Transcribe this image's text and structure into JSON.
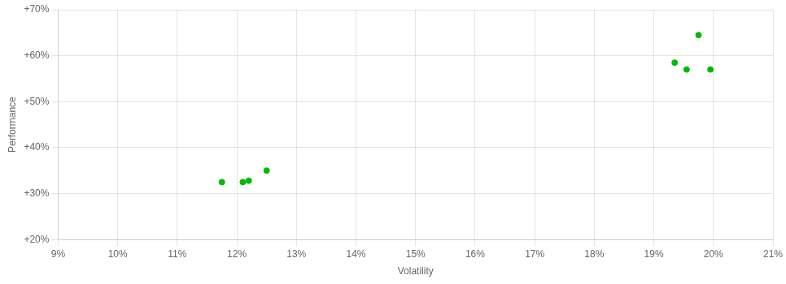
{
  "chart_data": {
    "type": "scatter",
    "x": [
      11.75,
      12.1,
      12.2,
      12.5,
      19.35,
      19.55,
      19.75,
      19.95
    ],
    "values": [
      32.5,
      32.5,
      32.8,
      35.0,
      58.5,
      57.0,
      64.5,
      57.0
    ],
    "color": "#00bb00",
    "xlabel": "Volatility",
    "ylabel": "Performance",
    "xlim": [
      9,
      21
    ],
    "ylim": [
      20,
      70
    ],
    "xticks": [
      {
        "value": 9,
        "label": "9%"
      },
      {
        "value": 10,
        "label": "10%"
      },
      {
        "value": 11,
        "label": "11%"
      },
      {
        "value": 12,
        "label": "12%"
      },
      {
        "value": 13,
        "label": "13%"
      },
      {
        "value": 14,
        "label": "14%"
      },
      {
        "value": 15,
        "label": "15%"
      },
      {
        "value": 16,
        "label": "16%"
      },
      {
        "value": 17,
        "label": "17%"
      },
      {
        "value": 18,
        "label": "18%"
      },
      {
        "value": 19,
        "label": "19%"
      },
      {
        "value": 20,
        "label": "20%"
      },
      {
        "value": 21,
        "label": "21%"
      }
    ],
    "yticks": [
      {
        "value": 20,
        "label": "+20%"
      },
      {
        "value": 30,
        "label": "+30%"
      },
      {
        "value": 40,
        "label": "+40%"
      },
      {
        "value": 50,
        "label": "+50%"
      },
      {
        "value": 60,
        "label": "+60%"
      },
      {
        "value": 70,
        "label": "+70%"
      }
    ],
    "grid": true
  }
}
